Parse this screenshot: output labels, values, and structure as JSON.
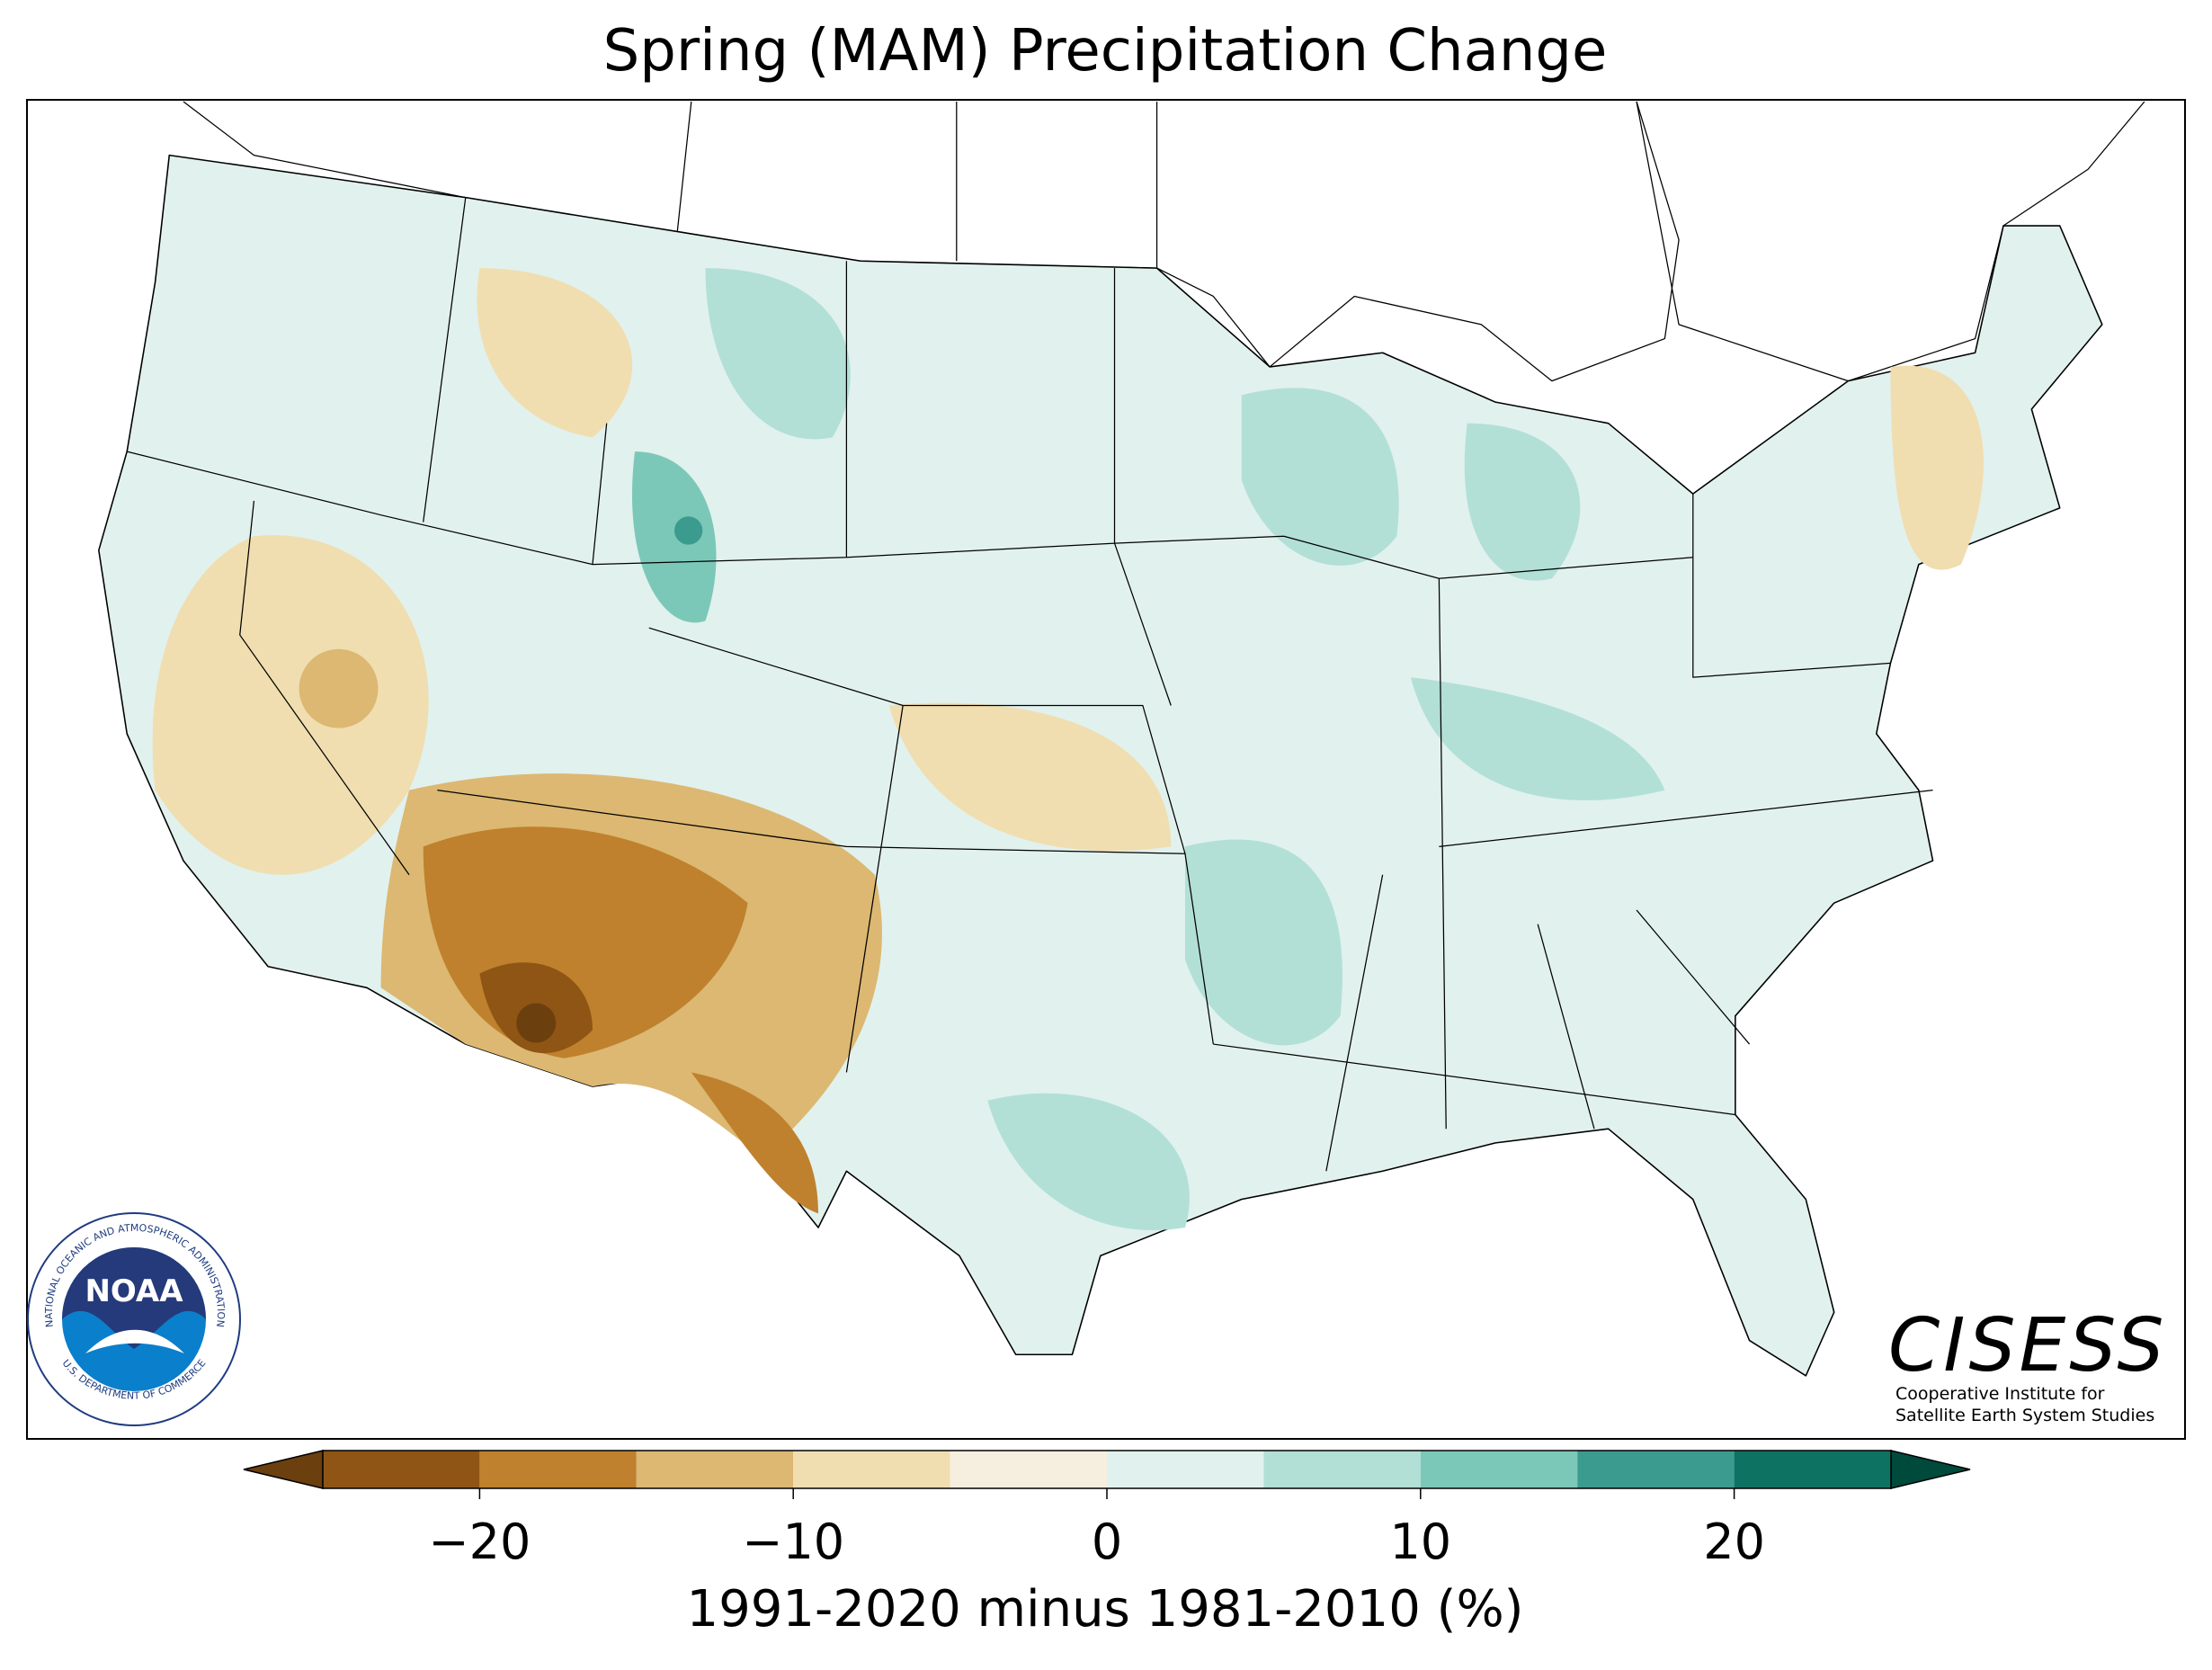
{
  "title": "Spring (MAM) Precipitation Change",
  "colorbar": {
    "label": "1991-2020 minus 1981-2010 (%)",
    "lim": [
      -25,
      25
    ],
    "boundaries": [
      -25,
      -20,
      -15,
      -10,
      -5,
      0,
      5,
      10,
      15,
      20,
      25
    ],
    "colors": [
      "#8f5515",
      "#bf812d",
      "#dcb872",
      "#f0deb0",
      "#f6efdf",
      "#e1f1ee",
      "#b2e0d6",
      "#7cc8b8",
      "#3c9b8f",
      "#0e7262"
    ],
    "under_color": "#6b3f0e",
    "over_color": "#004a3c",
    "ticks": [
      {
        "value": -20,
        "label": "−20"
      },
      {
        "value": -10,
        "label": "−10"
      },
      0,
      10,
      20
    ]
  },
  "logos": {
    "noaa": {
      "name": "NOAA",
      "ring_top": "NATIONAL OCEANIC AND ATMOSPHERIC ADMINISTRATION",
      "ring_bottom": "U.S. DEPARTMENT OF COMMERCE"
    },
    "cisess": {
      "name": "CISESS",
      "line1": "Cooperative Institute for",
      "line2": "Satellite Earth System Studies"
    }
  }
}
